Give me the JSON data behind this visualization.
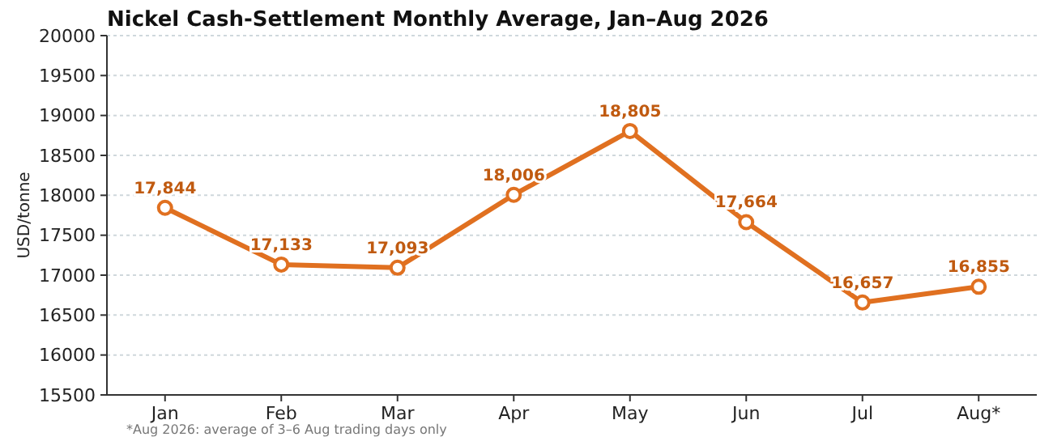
{
  "chart_data": {
    "type": "line",
    "title": "Nickel Cash-Settlement Monthly Average, Jan–Aug 2026",
    "ylabel": "USD/tonne",
    "categories": [
      "Jan",
      "Feb",
      "Mar",
      "Apr",
      "May",
      "Jun",
      "Jul",
      "Aug*"
    ],
    "series": [
      {
        "color": "#e07020",
        "values": [
          17844,
          17133,
          17093,
          18006,
          18805,
          17664,
          16657,
          16855
        ],
        "value_labels": [
          "17,844",
          "17,133",
          "17,093",
          "18,006",
          "18,805",
          "17,664",
          "16,657",
          "16,855"
        ]
      }
    ],
    "ylim": [
      15500,
      20000
    ],
    "yticks": [
      15500,
      16000,
      16500,
      17000,
      17500,
      18000,
      18500,
      19000,
      19500,
      20000
    ],
    "grid": "y",
    "marker": "circle",
    "line_style": "solid",
    "annotations": [
      "*Aug 2026: average of 3–6 Aug trading days only"
    ]
  }
}
